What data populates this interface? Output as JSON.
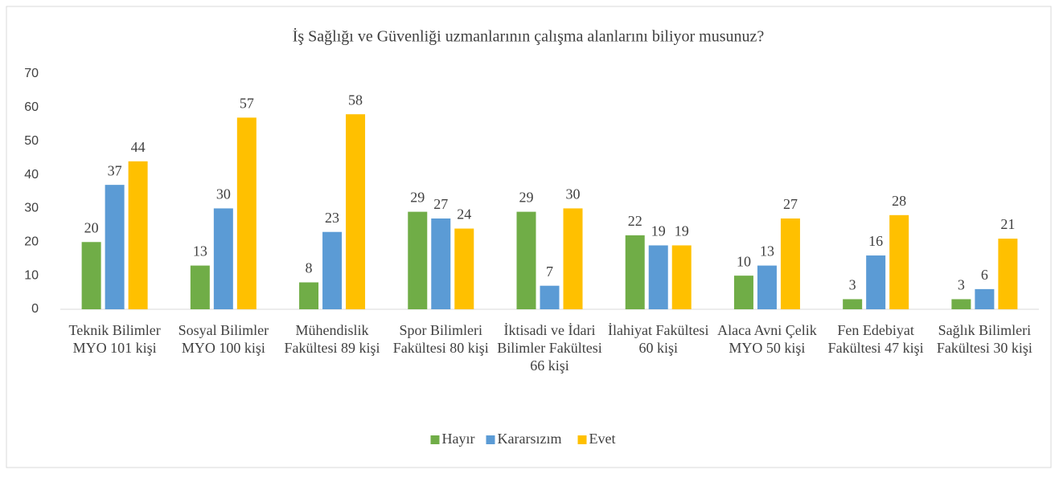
{
  "chart_data": {
    "type": "bar",
    "title": "İş Sağlığı ve Güvenliği uzmanlarının çalışma alanlarını biliyor musunuz?",
    "categories": [
      "Teknik Bilimler MYO 101 kişi",
      "Sosyal Bilimler MYO 100 kişi",
      "Mühendislik Fakültesi 89 kişi",
      "Spor Bilimleri Fakültesi 80 kişi",
      "İktisadi ve İdari Bilimler Fakültesi 66 kişi",
      "İlahiyat Fakültesi 60 kişi",
      "Alaca Avni Çelik MYO 50 kişi",
      "Fen Edebiyat Fakültesi 47 kişi",
      "Sağlık Bilimleri Fakültesi 30 kişi"
    ],
    "series": [
      {
        "name": "Hayır",
        "color": "#70ad47",
        "values": [
          20,
          13,
          8,
          29,
          29,
          22,
          10,
          3,
          3
        ]
      },
      {
        "name": "Kararsızım",
        "color": "#5b9bd5",
        "values": [
          37,
          30,
          23,
          27,
          7,
          19,
          13,
          16,
          6
        ]
      },
      {
        "name": "Evet",
        "color": "#ffc000",
        "values": [
          44,
          57,
          58,
          24,
          30,
          19,
          27,
          28,
          21
        ]
      }
    ],
    "ylim": [
      0,
      70
    ],
    "yticks": [
      0,
      10,
      20,
      30,
      40,
      50,
      60,
      70
    ],
    "grid": false,
    "legend": "bottom"
  }
}
